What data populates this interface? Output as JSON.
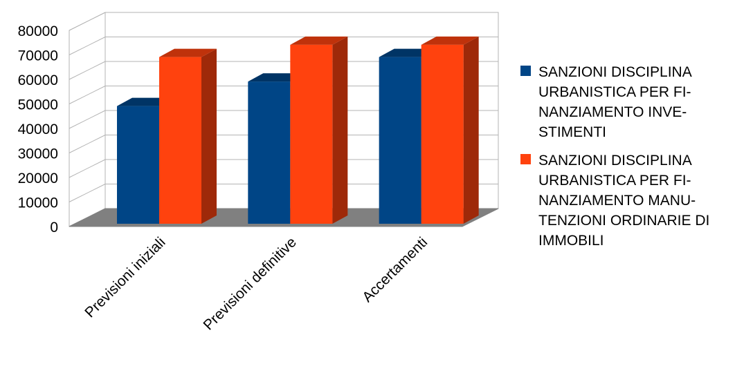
{
  "chart_data": {
    "type": "bar",
    "categories": [
      "Previsioni iniziali",
      "Previsioni definitive",
      "Accertamenti"
    ],
    "series": [
      {
        "name": "SANZIONI DISCIPLINA URBANISTICA PER FINANZIAMENTO INVESTIMENTI",
        "legend_lines": [
          "SANZIONI DISCIPLINA",
          "URBANISTICA PER FI-",
          "NANZIAMENTO INVE-",
          "STIMENTI"
        ],
        "color": "#004586",
        "values": [
          48000,
          58000,
          68000
        ]
      },
      {
        "name": "SANZIONI DISCIPLINA URBANISTICA PER FINANZIAMENTO MANUTENZIONI ORDINARIE DI IMMOBILI",
        "legend_lines": [
          "SANZIONI DISCIPLINA",
          "URBANISTICA PER FI-",
          "NANZIAMENTO MANU-",
          "TENZIONI ORDINARIE DI",
          "IMMOBILI"
        ],
        "color": "#ff420e",
        "values": [
          68000,
          73000,
          73000
        ]
      }
    ],
    "y_ticks": [
      "0",
      "10000",
      "20000",
      "30000",
      "40000",
      "50000",
      "60000",
      "70000",
      "80000"
    ],
    "ylim": [
      0,
      80000
    ],
    "grid": true,
    "legend_position": "right",
    "title": "",
    "xlabel": "",
    "ylabel": "",
    "style": "3d-bar"
  }
}
